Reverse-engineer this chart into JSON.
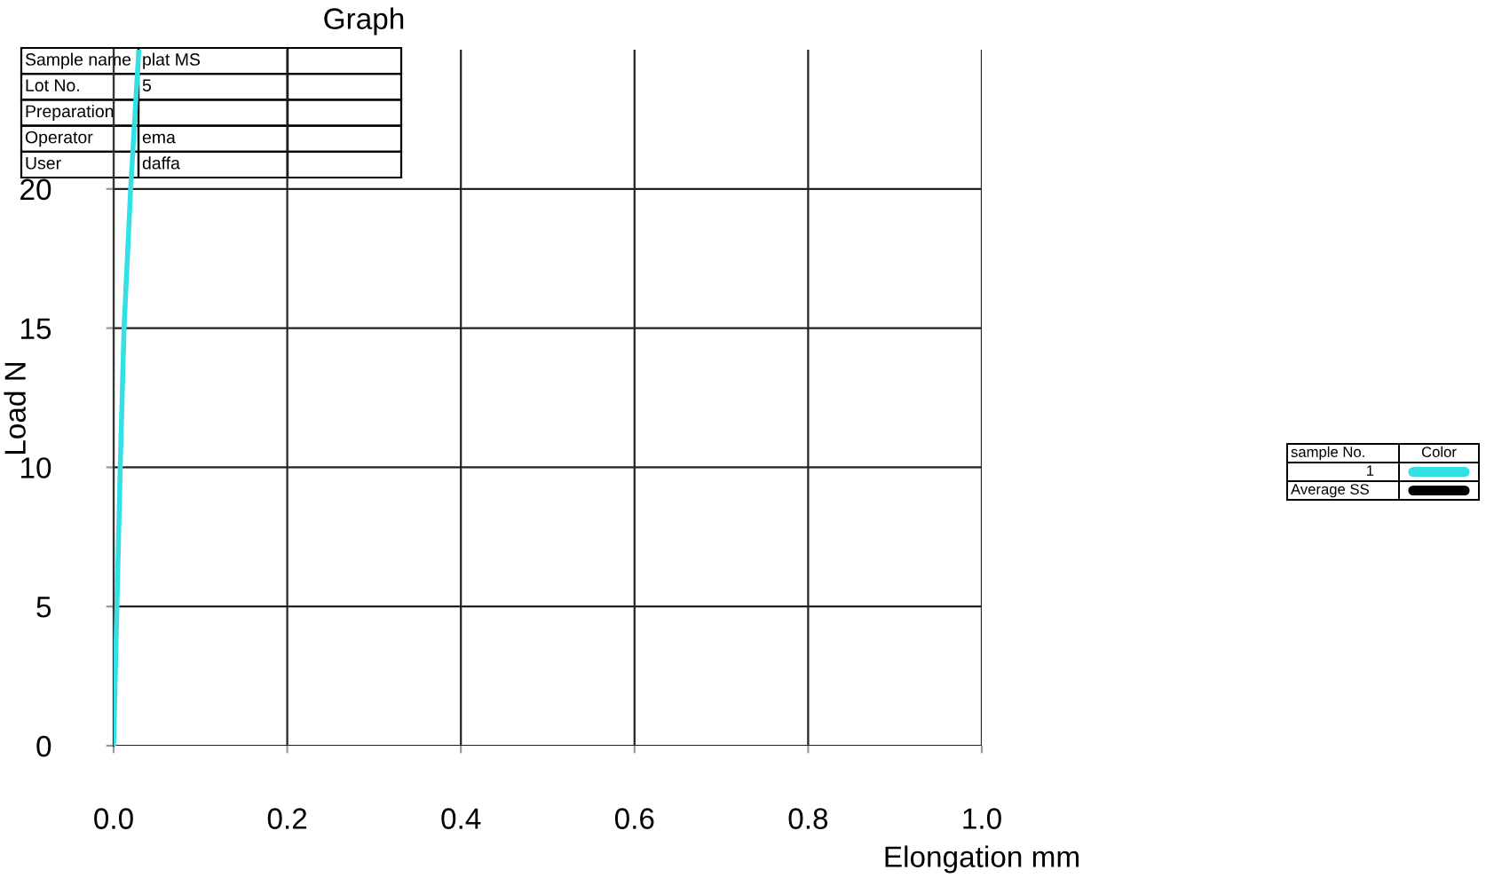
{
  "chart_data": {
    "type": "line",
    "title": "Graph",
    "xlabel": "Elongation mm",
    "ylabel": "Load N",
    "x": [
      0,
      0.0076,
      0.012,
      0.0196,
      0.029
    ],
    "series": [
      {
        "name": "1",
        "color": "#33e0e6",
        "values": [
          0,
          10,
          15,
          20,
          25
        ]
      },
      {
        "name": "Average SS",
        "color": "#000000",
        "values": [
          null,
          null,
          null,
          null,
          null
        ]
      }
    ],
    "legend_title": "sample No.",
    "xlim": [
      0,
      1.0
    ],
    "ylim": [
      0,
      25
    ],
    "xticks": [
      {
        "value": 0,
        "label": "0.0"
      },
      0.2,
      0.4,
      0.6,
      0.8,
      {
        "value": 1,
        "label": "1.0"
      }
    ],
    "yticks": [
      0,
      5,
      10,
      15,
      20
    ],
    "grid": true,
    "legend": "right",
    "annotations": [
      "Sample name",
      "plat MS",
      "Lot No.",
      "5",
      "Preparation",
      "Operator",
      "ema",
      "User",
      "daffa",
      "Color"
    ]
  }
}
